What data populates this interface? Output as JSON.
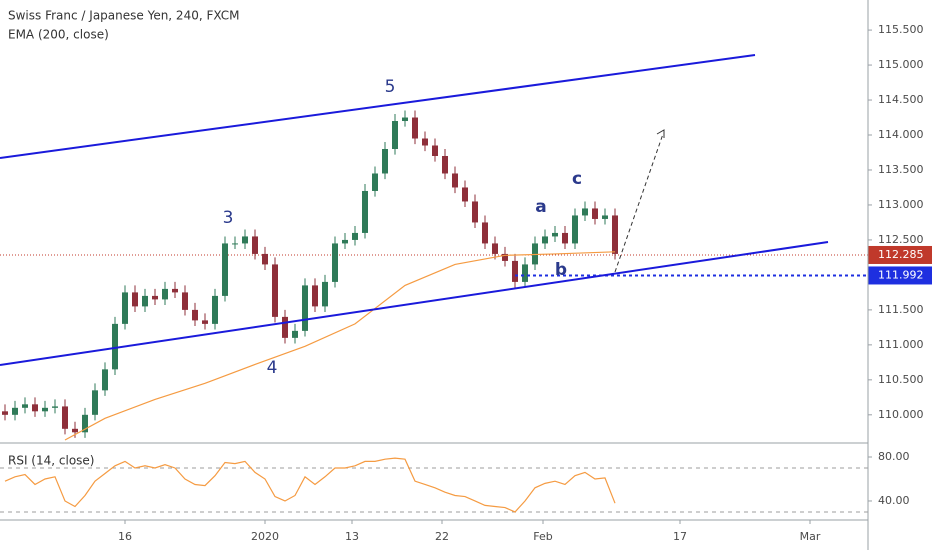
{
  "chart_data": [
    {
      "type": "candlestick",
      "title": "Swiss Franc / Japanese Yen, 240, FXCM",
      "up_color": "#2f7a58",
      "down_color": "#8e2f3a",
      "open": [
        110.05,
        110.0,
        110.1,
        110.15,
        110.05,
        110.1,
        110.12,
        109.8,
        109.75,
        110.0,
        110.35,
        110.65,
        111.3,
        111.75,
        111.55,
        111.7,
        111.65,
        111.8,
        111.75,
        111.5,
        111.35,
        111.3,
        111.7,
        112.45,
        112.45,
        112.55,
        112.3,
        112.15,
        111.4,
        111.1,
        111.2,
        111.85,
        111.55,
        111.9,
        112.45,
        112.5,
        112.6,
        113.2,
        113.45,
        113.8,
        114.2,
        114.25,
        113.95,
        113.85,
        113.7,
        113.45,
        113.25,
        113.05,
        112.75,
        112.45,
        112.3,
        112.2,
        111.9,
        112.15,
        112.45,
        112.55,
        112.6,
        112.45,
        112.85,
        112.95,
        112.8,
        112.85
      ],
      "high": [
        110.15,
        110.2,
        110.25,
        110.25,
        110.2,
        110.22,
        110.22,
        109.9,
        110.1,
        110.45,
        110.75,
        111.4,
        111.85,
        111.85,
        111.8,
        111.8,
        111.9,
        111.9,
        111.85,
        111.6,
        111.45,
        111.8,
        112.55,
        112.55,
        112.65,
        112.65,
        112.4,
        112.25,
        111.5,
        111.3,
        111.95,
        111.95,
        112.0,
        112.55,
        112.6,
        112.7,
        113.3,
        113.55,
        113.9,
        114.3,
        114.35,
        114.35,
        114.05,
        113.95,
        113.8,
        113.55,
        113.35,
        113.15,
        112.85,
        112.55,
        112.4,
        112.3,
        112.25,
        112.55,
        112.65,
        112.7,
        112.7,
        112.95,
        113.05,
        113.05,
        112.95,
        112.95
      ],
      "low": [
        109.92,
        109.92,
        110.02,
        109.97,
        109.97,
        110.02,
        109.72,
        109.67,
        109.67,
        109.92,
        110.27,
        110.57,
        111.22,
        111.47,
        111.47,
        111.57,
        111.57,
        111.67,
        111.42,
        111.27,
        111.22,
        111.22,
        111.62,
        112.37,
        112.37,
        112.22,
        112.07,
        111.32,
        111.02,
        111.02,
        111.12,
        111.47,
        111.47,
        111.82,
        112.37,
        112.42,
        112.52,
        113.12,
        113.37,
        113.72,
        114.12,
        113.87,
        113.77,
        113.62,
        113.37,
        113.17,
        112.97,
        112.67,
        112.37,
        112.22,
        112.12,
        111.82,
        111.82,
        112.07,
        112.37,
        112.47,
        112.37,
        112.37,
        112.77,
        112.72,
        112.72,
        112.22
      ],
      "close": [
        110.0,
        110.1,
        110.15,
        110.05,
        110.1,
        110.12,
        109.8,
        109.75,
        110.0,
        110.35,
        110.65,
        111.3,
        111.75,
        111.55,
        111.7,
        111.65,
        111.8,
        111.75,
        111.5,
        111.35,
        111.3,
        111.7,
        112.45,
        112.45,
        112.55,
        112.3,
        112.15,
        111.4,
        111.1,
        111.2,
        111.85,
        111.55,
        111.9,
        112.45,
        112.5,
        112.6,
        113.2,
        113.45,
        113.8,
        114.2,
        114.25,
        113.95,
        113.85,
        113.7,
        113.45,
        113.25,
        113.05,
        112.75,
        112.45,
        112.3,
        112.2,
        111.9,
        112.15,
        112.45,
        112.55,
        112.6,
        112.45,
        112.85,
        112.95,
        112.8,
        112.85,
        112.3
      ],
      "ema": {
        "name": "EMA (200, close)",
        "color": "#f59b42",
        "x": [
          6,
          10,
          15,
          20,
          25,
          30,
          35,
          40,
          45,
          50,
          55,
          61
        ],
        "values": [
          109.64,
          109.95,
          110.22,
          110.45,
          110.72,
          110.98,
          111.3,
          111.85,
          112.15,
          112.28,
          112.3,
          112.33
        ]
      },
      "last_price": 112.285,
      "last_price_color": "#c0392b",
      "level": 111.992,
      "level_color": "#1e2fe0",
      "annotations": [
        "5",
        "3",
        "4",
        "a",
        "b",
        "c"
      ],
      "ylim": [
        109.64,
        115.93
      ],
      "yticks": [
        {
          "value": 110,
          "label": "110.000"
        },
        {
          "value": 110.5,
          "label": "110.500"
        },
        {
          "value": 111,
          "label": "111.000"
        },
        {
          "value": 111.5,
          "label": "111.500"
        },
        {
          "value": 112.5,
          "label": "112.500"
        },
        {
          "value": 113,
          "label": "113.000"
        },
        {
          "value": 113.5,
          "label": "113.500"
        },
        {
          "value": 114,
          "label": "114.000"
        },
        {
          "value": 114.5,
          "label": "114.500"
        },
        {
          "value": 115,
          "label": "115.000"
        },
        {
          "value": 115.5,
          "label": "115.500"
        }
      ],
      "xlim": [
        -0.5,
        86.3
      ],
      "xticks": [
        {
          "value": 12,
          "label": "16"
        },
        {
          "value": 26,
          "label": "2020"
        },
        {
          "value": 34.7,
          "label": "13"
        },
        {
          "value": 43.7,
          "label": "22"
        },
        {
          "value": 53.8,
          "label": "Feb"
        },
        {
          "value": 67.5,
          "label": "17"
        },
        {
          "value": 80.5,
          "label": "Mar"
        }
      ]
    },
    {
      "type": "line",
      "title": "RSI (14, close)",
      "color": "#f59b42",
      "values": [
        58,
        62,
        64,
        55,
        60,
        62,
        40,
        35,
        45,
        58,
        65,
        72,
        76,
        70,
        72,
        70,
        73,
        70,
        60,
        55,
        54,
        63,
        75,
        74,
        76,
        66,
        60,
        44,
        40,
        45,
        62,
        55,
        62,
        70,
        70,
        72,
        76,
        76,
        78,
        79,
        78,
        58,
        55,
        52,
        48,
        45,
        44,
        40,
        36,
        35,
        34,
        30,
        40,
        52,
        56,
        58,
        55,
        63,
        66,
        60,
        61,
        38
      ],
      "bands": [
        70,
        30
      ],
      "ylim": [
        22.7,
        90
      ],
      "yticks": [
        {
          "value": 40,
          "label": "40.00"
        },
        {
          "value": 80,
          "label": "80.00"
        }
      ]
    }
  ]
}
